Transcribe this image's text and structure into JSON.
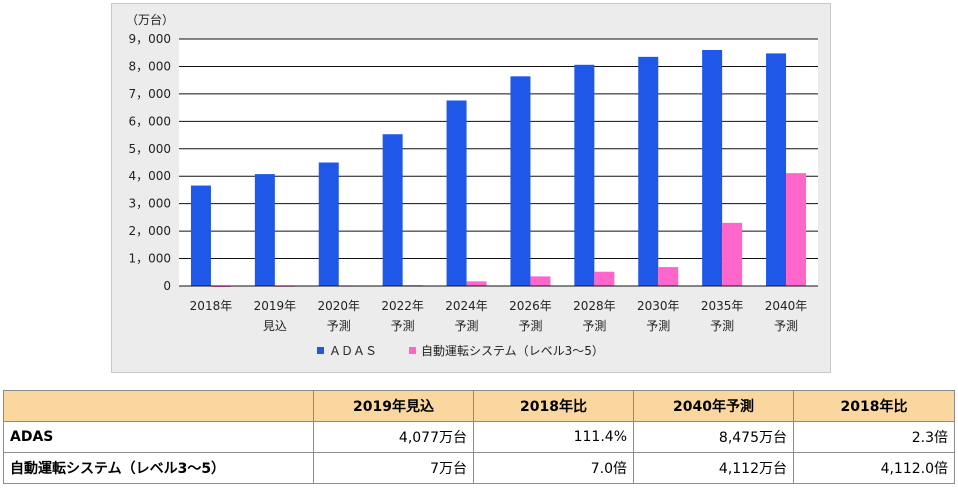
{
  "chart_data": {
    "type": "bar",
    "unit_label": "（万台）",
    "categories": [
      [
        "2018年"
      ],
      [
        "2019年",
        "見込"
      ],
      [
        "2020年",
        "予測"
      ],
      [
        "2022年",
        "予測"
      ],
      [
        "2024年",
        "予測"
      ],
      [
        "2026年",
        "予測"
      ],
      [
        "2028年",
        "予測"
      ],
      [
        "2030年",
        "予測"
      ],
      [
        "2035年",
        "予測"
      ],
      [
        "2040年",
        "予測"
      ]
    ],
    "series": [
      {
        "name": "ＡＤＡＳ",
        "color": "#1f57e8",
        "values": [
          3660,
          4077,
          4500,
          5530,
          6760,
          7640,
          8060,
          8350,
          8600,
          8475
        ]
      },
      {
        "name": "自動運転システム（レベル3～5）",
        "color": "#ff66cc",
        "values": [
          1,
          7,
          15,
          30,
          170,
          350,
          520,
          690,
          2300,
          4112
        ]
      }
    ],
    "ylim": [
      0,
      9000
    ],
    "yticks": [
      "0",
      "1，000",
      "2，000",
      "3，000",
      "4，000",
      "5，000",
      "6，000",
      "7，000",
      "8，000",
      "9，000"
    ],
    "grid": true,
    "legend_position": "bottom"
  },
  "table": {
    "headers": [
      "",
      "2019年見込",
      "2018年比",
      "2040年予測",
      "2018年比"
    ],
    "rows": [
      [
        "ADAS",
        "4,077万台",
        "111.4%",
        "8,475万台",
        "2.3倍"
      ],
      [
        "自動運転システム（レベル3～5）",
        "7万台",
        "7.0倍",
        "4,112万台",
        "4,112.0倍"
      ]
    ]
  }
}
